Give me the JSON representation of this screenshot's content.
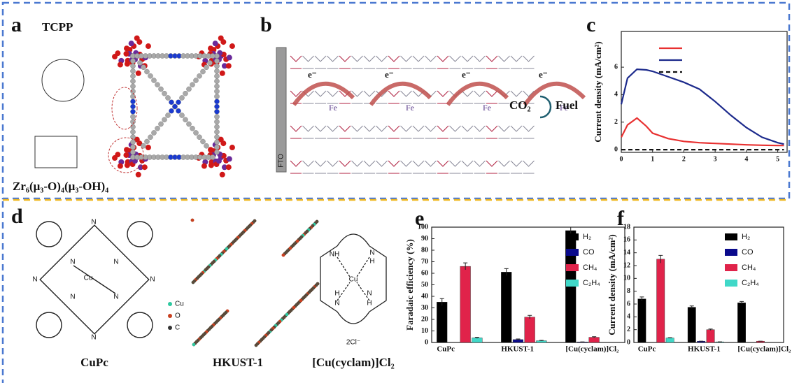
{
  "panel_a": {
    "label": "a",
    "tcpp": "TCPP",
    "cluster": "Zr₆(μ₃-O)₄(μ₃-OH)₄"
  },
  "panel_b": {
    "label": "b",
    "electrons": [
      "e⁻",
      "e⁻",
      "e⁻",
      "e⁻"
    ],
    "fe": [
      "Fe",
      "Fe",
      "Fe",
      "Fe"
    ],
    "co2": "CO₂",
    "fuel": "Fuel",
    "electrode": "FTO"
  },
  "panel_d": {
    "label": "d",
    "names": [
      "CuPc",
      "HKUST-1",
      "[Cu(cyclam)]Cl₂"
    ],
    "legend": [
      "Cu",
      "O",
      "C"
    ],
    "cupc_atoms": [
      "N",
      "N",
      "N",
      "N",
      "N",
      "N",
      "N",
      "N",
      "Cu"
    ],
    "cyclam_atoms": [
      "NH",
      "N",
      "H",
      "H",
      "N",
      "N",
      "H",
      "Cu"
    ],
    "counterion": "2Cl⁻"
  },
  "chart_data": [
    {
      "type": "line",
      "panel": "c",
      "ylabel": "Current density (mA/cm²)",
      "x": [
        0,
        0.2,
        0.5,
        0.8,
        1,
        1.5,
        2,
        2.5,
        3,
        3.5,
        4,
        4.5,
        5,
        5.2
      ],
      "series": [
        {
          "color": "#e83030",
          "values": [
            0.9,
            1.8,
            2.3,
            1.7,
            1.2,
            0.8,
            0.6,
            0.5,
            0.45,
            0.4,
            0.35,
            0.32,
            0.3,
            0.3
          ]
        },
        {
          "color": "#1c2a8c",
          "values": [
            3.3,
            5.2,
            5.85,
            5.8,
            5.7,
            5.3,
            4.9,
            4.4,
            3.5,
            2.5,
            1.6,
            0.9,
            0.5,
            0.4
          ]
        },
        {
          "color": "#111111",
          "dash": true,
          "values": [
            0,
            0,
            0,
            0,
            0,
            0,
            0,
            0,
            0,
            0,
            0,
            0,
            0,
            0
          ]
        }
      ],
      "xlim": [
        0,
        5.3
      ],
      "ylim": [
        -0.2,
        8.6
      ],
      "xticks": [
        0,
        1,
        2,
        3,
        4,
        5
      ],
      "yticks": [
        0,
        2,
        4,
        6
      ]
    },
    {
      "type": "bar",
      "panel": "e",
      "ylabel": "Faradaic efficiency (%)",
      "categories": [
        "CuPc",
        "HKUST-1",
        "[Cu(cyclam)]Cl₂"
      ],
      "series": [
        {
          "name": "H₂",
          "color": "#000000",
          "values": [
            35,
            61,
            97
          ],
          "errors": [
            3,
            3,
            3
          ]
        },
        {
          "name": "CO",
          "color": "#0a0a8c",
          "values": [
            0,
            2.5,
            0.5
          ],
          "errors": [
            0,
            0.5,
            0
          ]
        },
        {
          "name": "CH₄",
          "color": "#e0234a",
          "values": [
            66,
            22,
            4.5
          ],
          "errors": [
            3,
            1.5,
            0.5
          ]
        },
        {
          "name": "C₂H₄",
          "color": "#40d8c8",
          "values": [
            4,
            1.5,
            0
          ],
          "errors": [
            0.5,
            0.3,
            0
          ]
        }
      ],
      "ylim": [
        0,
        100
      ],
      "yticks": [
        0,
        10,
        20,
        30,
        40,
        50,
        60,
        70,
        80,
        90,
        100
      ]
    },
    {
      "type": "bar",
      "panel": "f",
      "ylabel": "Current density (mA/cm²)",
      "categories": [
        "CuPc",
        "HKUST-1",
        "[Cu(cyclam)]Cl₂"
      ],
      "series": [
        {
          "name": "H₂",
          "color": "#000000",
          "values": [
            6.8,
            5.5,
            6.2
          ],
          "errors": [
            0.3,
            0.2,
            0.2
          ]
        },
        {
          "name": "CO",
          "color": "#0a0a8c",
          "values": [
            0,
            0.2,
            0
          ],
          "errors": [
            0,
            0,
            0
          ]
        },
        {
          "name": "CH₄",
          "color": "#e0234a",
          "values": [
            13,
            2,
            0.2
          ],
          "errors": [
            0.6,
            0.1,
            0
          ]
        },
        {
          "name": "C₂H₄",
          "color": "#40d8c8",
          "values": [
            0.7,
            0.1,
            0
          ],
          "errors": [
            0.05,
            0,
            0
          ]
        }
      ],
      "ylim": [
        0,
        18
      ],
      "yticks": [
        0,
        2,
        4,
        6,
        8,
        10,
        12,
        14,
        16,
        18
      ]
    }
  ]
}
